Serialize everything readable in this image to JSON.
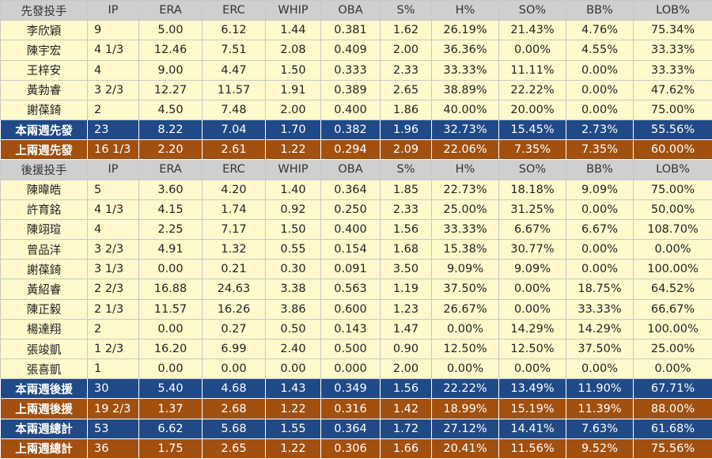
{
  "columns": [
    "IP",
    "ERA",
    "ERC",
    "WHIP",
    "OBA",
    "S%",
    "H%",
    "SO%",
    "BB%",
    "LOB%"
  ],
  "sections": [
    {
      "header": "先發投手",
      "rows": [
        [
          "李欣穎",
          "9",
          "5.00",
          "6.12",
          "1.44",
          "0.381",
          "1.62",
          "26.19%",
          "21.43%",
          "4.76%",
          "75.34%"
        ],
        [
          "陳宇宏",
          "4 1/3",
          "12.46",
          "7.51",
          "2.08",
          "0.409",
          "2.00",
          "36.36%",
          "0.00%",
          "4.55%",
          "33.33%"
        ],
        [
          "王梓安",
          "4",
          "9.00",
          "4.47",
          "1.50",
          "0.333",
          "2.33",
          "33.33%",
          "11.11%",
          "0.00%",
          "33.33%"
        ],
        [
          "黃勃睿",
          "3 2/3",
          "12.27",
          "11.57",
          "1.91",
          "0.389",
          "2.65",
          "38.89%",
          "22.22%",
          "0.00%",
          "47.62%"
        ],
        [
          "謝葆錡",
          "2",
          "4.50",
          "7.48",
          "2.00",
          "0.400",
          "1.86",
          "40.00%",
          "20.00%",
          "0.00%",
          "75.00%"
        ]
      ],
      "totals": [
        {
          "style": "blue",
          "cells": [
            "本兩週先發",
            "23",
            "8.22",
            "7.04",
            "1.70",
            "0.382",
            "1.96",
            "32.73%",
            "15.45%",
            "2.73%",
            "55.56%"
          ]
        },
        {
          "style": "brown",
          "cells": [
            "上兩週先發",
            "16 1/3",
            "2.20",
            "2.61",
            "1.22",
            "0.294",
            "2.09",
            "22.06%",
            "7.35%",
            "7.35%",
            "60.00%"
          ]
        }
      ]
    },
    {
      "header": "後援投手",
      "rows": [
        [
          "陳暐皓",
          "5",
          "3.60",
          "4.20",
          "1.40",
          "0.364",
          "1.85",
          "22.73%",
          "18.18%",
          "9.09%",
          "75.00%"
        ],
        [
          "許育銘",
          "4 1/3",
          "4.15",
          "1.74",
          "0.92",
          "0.250",
          "2.33",
          "25.00%",
          "31.25%",
          "0.00%",
          "50.00%"
        ],
        [
          "陳翊瑄",
          "4",
          "2.25",
          "7.17",
          "1.50",
          "0.400",
          "1.56",
          "33.33%",
          "6.67%",
          "6.67%",
          "108.70%"
        ],
        [
          "曾品洋",
          "3 2/3",
          "4.91",
          "1.32",
          "0.55",
          "0.154",
          "1.68",
          "15.38%",
          "30.77%",
          "0.00%",
          "0.00%"
        ],
        [
          "謝葆錡",
          "3 1/3",
          "0.00",
          "0.21",
          "0.30",
          "0.091",
          "3.50",
          "9.09%",
          "9.09%",
          "0.00%",
          "100.00%"
        ],
        [
          "黃紹睿",
          "2 2/3",
          "16.88",
          "24.63",
          "3.38",
          "0.563",
          "1.19",
          "37.50%",
          "0.00%",
          "18.75%",
          "64.52%"
        ],
        [
          "陳正毅",
          "2 1/3",
          "11.57",
          "16.26",
          "3.86",
          "0.600",
          "1.23",
          "26.67%",
          "0.00%",
          "33.33%",
          "66.67%"
        ],
        [
          "楊達翔",
          "2",
          "0.00",
          "0.27",
          "0.50",
          "0.143",
          "1.47",
          "0.00%",
          "14.29%",
          "14.29%",
          "100.00%"
        ],
        [
          "張竣凱",
          "1 2/3",
          "16.20",
          "6.99",
          "2.40",
          "0.500",
          "0.90",
          "12.50%",
          "12.50%",
          "37.50%",
          "25.00%"
        ],
        [
          "張喜凱",
          "1",
          "0.00",
          "0.00",
          "0.00",
          "0.000",
          "2.00",
          "0.00%",
          "0.00%",
          "0.00%",
          "0.00%"
        ]
      ],
      "totals": [
        {
          "style": "blue",
          "cells": [
            "本兩週後援",
            "30",
            "5.40",
            "4.68",
            "1.43",
            "0.349",
            "1.56",
            "22.22%",
            "13.49%",
            "11.90%",
            "67.71%"
          ]
        },
        {
          "style": "brown",
          "cells": [
            "上兩週後援",
            "19 2/3",
            "1.37",
            "2.68",
            "1.22",
            "0.316",
            "1.42",
            "18.99%",
            "15.19%",
            "11.39%",
            "88.00%"
          ]
        },
        {
          "style": "blue",
          "cells": [
            "本兩週總計",
            "53",
            "6.62",
            "5.68",
            "1.55",
            "0.364",
            "1.72",
            "27.12%",
            "14.41%",
            "7.63%",
            "61.68%"
          ]
        },
        {
          "style": "brown",
          "cells": [
            "上兩週總計",
            "36",
            "1.75",
            "2.65",
            "1.22",
            "0.306",
            "1.66",
            "20.41%",
            "11.56%",
            "9.52%",
            "75.56%"
          ]
        }
      ]
    }
  ]
}
